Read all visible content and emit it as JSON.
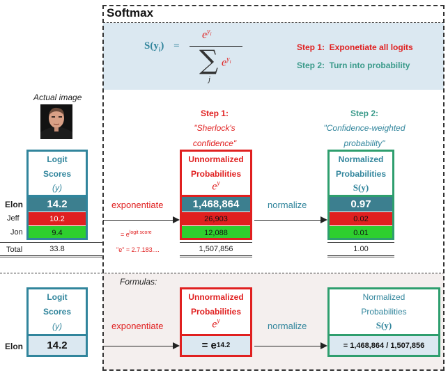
{
  "title": "Softmax",
  "formula": {
    "lhs": "S(y",
    "lhs_sub": "i",
    "lhs_close": ")",
    "equals": "=",
    "numerator_base": "e",
    "numerator_exp": "y",
    "numerator_exp_sub": "i",
    "sum_symbol": "∑",
    "sum_index": "j",
    "denominator_base": "e",
    "denominator_exp": "y",
    "denominator_exp_sub": "i"
  },
  "steps_legend": {
    "step1": "Step 1:  Exponetiate all logits",
    "step2": "Step 2:  Turn into probability"
  },
  "actual_image_label": "Actual image",
  "photo_icon": "portrait-photo",
  "logit_box": {
    "line1": "Logit",
    "line2": "Scores",
    "line3": "(y)"
  },
  "step1_caption": {
    "head": "Step 1:",
    "line1": "\"Sherlock's",
    "line2": "confidence\""
  },
  "step2_caption": {
    "head": "Step 2:",
    "line1": "\"Confidence-weighted",
    "line2": "probability\""
  },
  "unnorm_box": {
    "line1": "Unnormalized",
    "line2": "Probabilities",
    "line3_base": "e",
    "line3_exp": "y"
  },
  "norm_box": {
    "line1": "Normalized",
    "line2": "Probabilities",
    "line3": "S(y)"
  },
  "rows": [
    {
      "name": "Elon",
      "logit": "14.2",
      "unnorm": "1,468,864",
      "prob": "0.97"
    },
    {
      "name": "Jeff",
      "logit": "10.2",
      "unnorm": "26,903",
      "prob": "0.02"
    },
    {
      "name": "Jon",
      "logit": "9.4",
      "unnorm": "12,088",
      "prob": "0.01"
    }
  ],
  "total": {
    "label": "Total",
    "logit": "33.8",
    "unnorm": "1,507,856",
    "prob": "1.00"
  },
  "arrows": {
    "exponentiate": "exponentiate",
    "normalize": "normalize"
  },
  "notes": {
    "exp_note_prefix": "= e",
    "exp_note_sup": "logit score",
    "e_value": "\"e\" = 2.7.183...."
  },
  "formulas_label": "Formulas:",
  "bottom": {
    "name": "Elon",
    "logit": "14.2",
    "exp_formula_prefix": "= e",
    "exp_formula_sup": "14.2",
    "norm_formula": "= 1,468,864 / 1,507,856"
  },
  "colors": {
    "teal": "#31859c",
    "red": "#e02020",
    "green": "#2ecf2e",
    "dark_teal_fill": "#3c7f8f",
    "light_blue_bg": "#dbe8f1",
    "pink_bg": "#f4efee"
  }
}
